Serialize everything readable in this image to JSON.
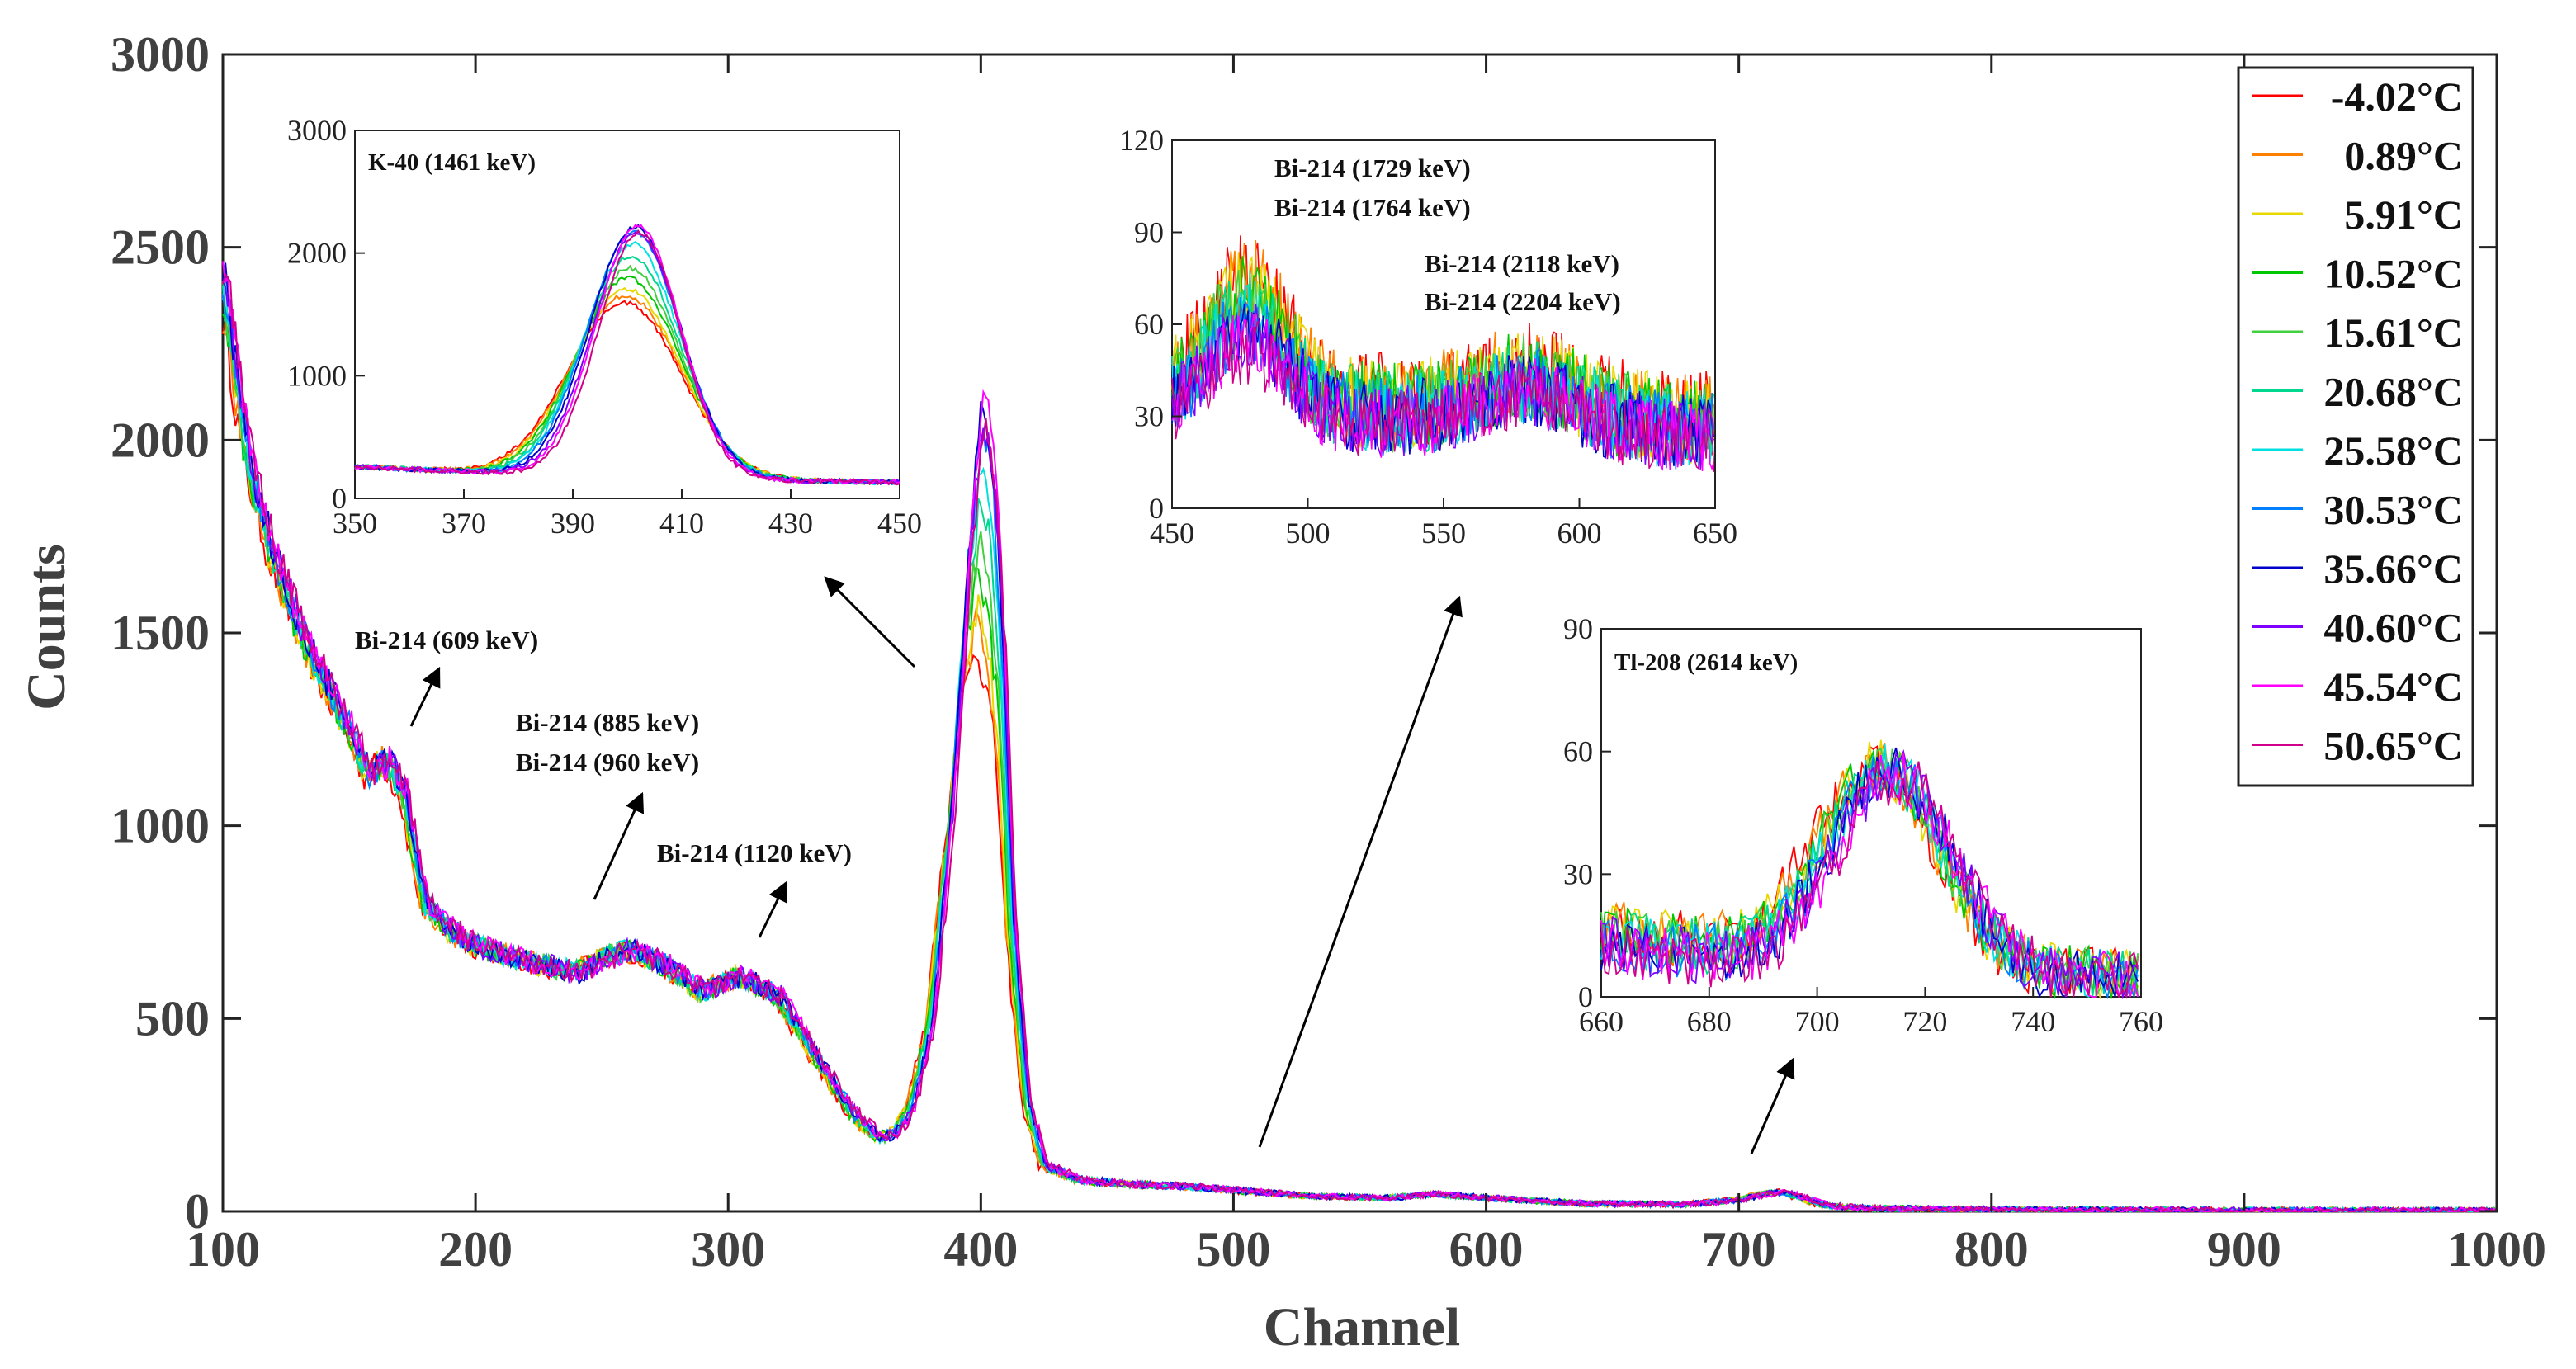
{
  "chart_data": {
    "type": "line",
    "xlabel": "Channel",
    "ylabel": "Counts",
    "xlim": [
      100,
      1000
    ],
    "ylim": [
      0,
      3000
    ],
    "xticks": [
      "100",
      "200",
      "300",
      "400",
      "500",
      "600",
      "700",
      "800",
      "900",
      "1000"
    ],
    "yticks": [
      "0",
      "500",
      "1000",
      "1500",
      "2000",
      "2500",
      "3000"
    ],
    "legend_position": "top-right",
    "series": [
      {
        "name": "-4.02°C",
        "color": "#ff0000"
      },
      {
        "name": "0.89°C",
        "color": "#ff8000"
      },
      {
        "name": "5.91°C",
        "color": "#e8d800"
      },
      {
        "name": "10.52°C",
        "color": "#00c800"
      },
      {
        "name": "15.61°C",
        "color": "#40d040"
      },
      {
        "name": "20.68°C",
        "color": "#00d890"
      },
      {
        "name": "25.58°C",
        "color": "#00e0e0"
      },
      {
        "name": "30.53°C",
        "color": "#0080ff"
      },
      {
        "name": "35.66°C",
        "color": "#0000c8"
      },
      {
        "name": "40.60°C",
        "color": "#8000ff"
      },
      {
        "name": "45.54°C",
        "color": "#ff00ff"
      },
      {
        "name": "50.65°C",
        "color": "#d0008a"
      }
    ],
    "main_profile": {
      "x": [
        100,
        110,
        120,
        130,
        140,
        150,
        158,
        165,
        172,
        180,
        190,
        200,
        220,
        240,
        260,
        275,
        290,
        305,
        320,
        335,
        350,
        360,
        365,
        372,
        380,
        388,
        395,
        400,
        404,
        408,
        412,
        418,
        425,
        440,
        460,
        480,
        500,
        530,
        560,
        580,
        600,
        640,
        680,
        700,
        710,
        718,
        725,
        735,
        750,
        800,
        900,
        1000
      ],
      "y": [
        2420,
        1950,
        1700,
        1520,
        1380,
        1250,
        1130,
        1170,
        1080,
        800,
        730,
        690,
        650,
        620,
        680,
        640,
        570,
        610,
        560,
        400,
        250,
        190,
        200,
        260,
        480,
        1050,
        1750,
        2100,
        1950,
        1500,
        800,
        300,
        120,
        80,
        70,
        65,
        55,
        40,
        35,
        45,
        35,
        20,
        18,
        30,
        45,
        50,
        35,
        15,
        8,
        5,
        3,
        2
      ]
    },
    "insets": [
      {
        "title": "K-40 (1461 keV)",
        "xlim": [
          350,
          450
        ],
        "ylim": [
          0,
          3000
        ],
        "xticks": [
          "350",
          "370",
          "390",
          "410",
          "430",
          "450"
        ],
        "yticks": [
          "0",
          "1000",
          "2000",
          "3000"
        ],
        "peak": {
          "center": 401,
          "width": 7.5,
          "base": 180,
          "heights": [
            1420,
            1480,
            1530,
            1620,
            1700,
            1800,
            1900,
            2000,
            2040,
            2000,
            2050,
            1990
          ]
        }
      },
      {
        "title": "",
        "xlim": [
          450,
          650
        ],
        "ylim": [
          0,
          120
        ],
        "xticks": [
          "450",
          "500",
          "550",
          "600",
          "650"
        ],
        "yticks": [
          "0",
          "30",
          "60",
          "90",
          "120"
        ]
      },
      {
        "title": "Tl-208 (2614 keV)",
        "xlim": [
          660,
          760
        ],
        "ylim": [
          0,
          90
        ],
        "xticks": [
          "660",
          "680",
          "700",
          "720",
          "740",
          "760"
        ],
        "yticks": [
          "0",
          "30",
          "60",
          "90"
        ]
      }
    ],
    "annotations": [
      {
        "text": "Bi-214 (609 keV)"
      },
      {
        "text": "Bi-214 (885 keV)"
      },
      {
        "text": "Bi-214 (960 keV)"
      },
      {
        "text": "Bi-214 (1120 keV)"
      },
      {
        "text": "Bi-214 (1729 keV)"
      },
      {
        "text": "Bi-214 (1764 keV)"
      },
      {
        "text": "Bi-214 (2118 keV)"
      },
      {
        "text": "Bi-214 (2204 keV)"
      }
    ]
  }
}
